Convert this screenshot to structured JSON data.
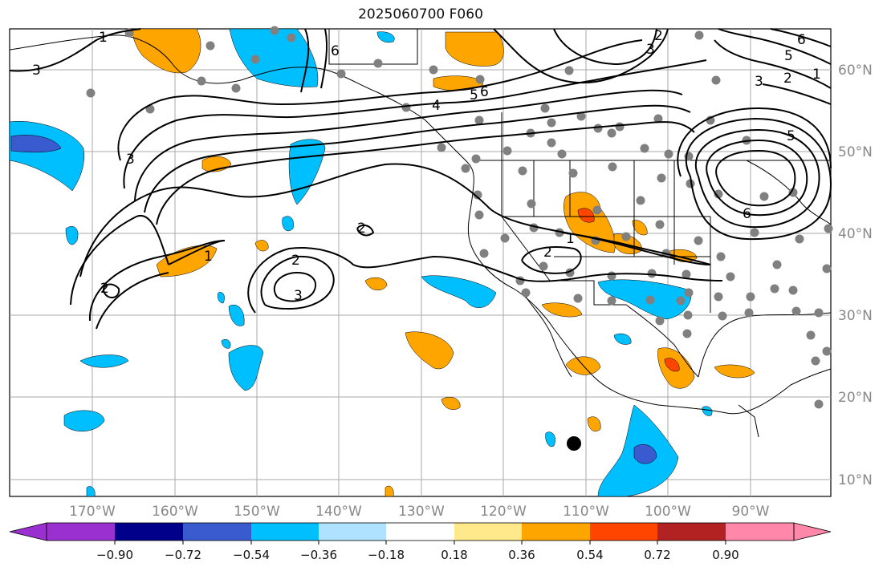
{
  "title": "2025060700 F060",
  "longitude_labels": [
    "170°W",
    "160°W",
    "150°W",
    "140°W",
    "130°W",
    "120°W",
    "110°W",
    "100°W",
    "90°W"
  ],
  "latitude_labels": [
    "60°N",
    "50°N",
    "40°N",
    "30°N",
    "20°N",
    "10°N"
  ],
  "contour_labels": [
    "1",
    "2",
    "3",
    "4",
    "5",
    "6"
  ],
  "colorbar": {
    "colors": [
      "#9b30d0",
      "#00008b",
      "#3a5bd0",
      "#00bfff",
      "#aee2ff",
      "#ffffff",
      "#ffe98a",
      "#ffa500",
      "#ff4500",
      "#b22222",
      "#ff88aa"
    ],
    "ticks": [
      "−0.90",
      "−0.72",
      "−0.54",
      "−0.36",
      "−0.18",
      "0.18",
      "0.36",
      "0.54",
      "0.72",
      "0.90"
    ]
  },
  "colors": {
    "land_outline": "#000000",
    "grid": "#aaaaaa",
    "station_dot": "#808080",
    "contour": "#000000"
  }
}
